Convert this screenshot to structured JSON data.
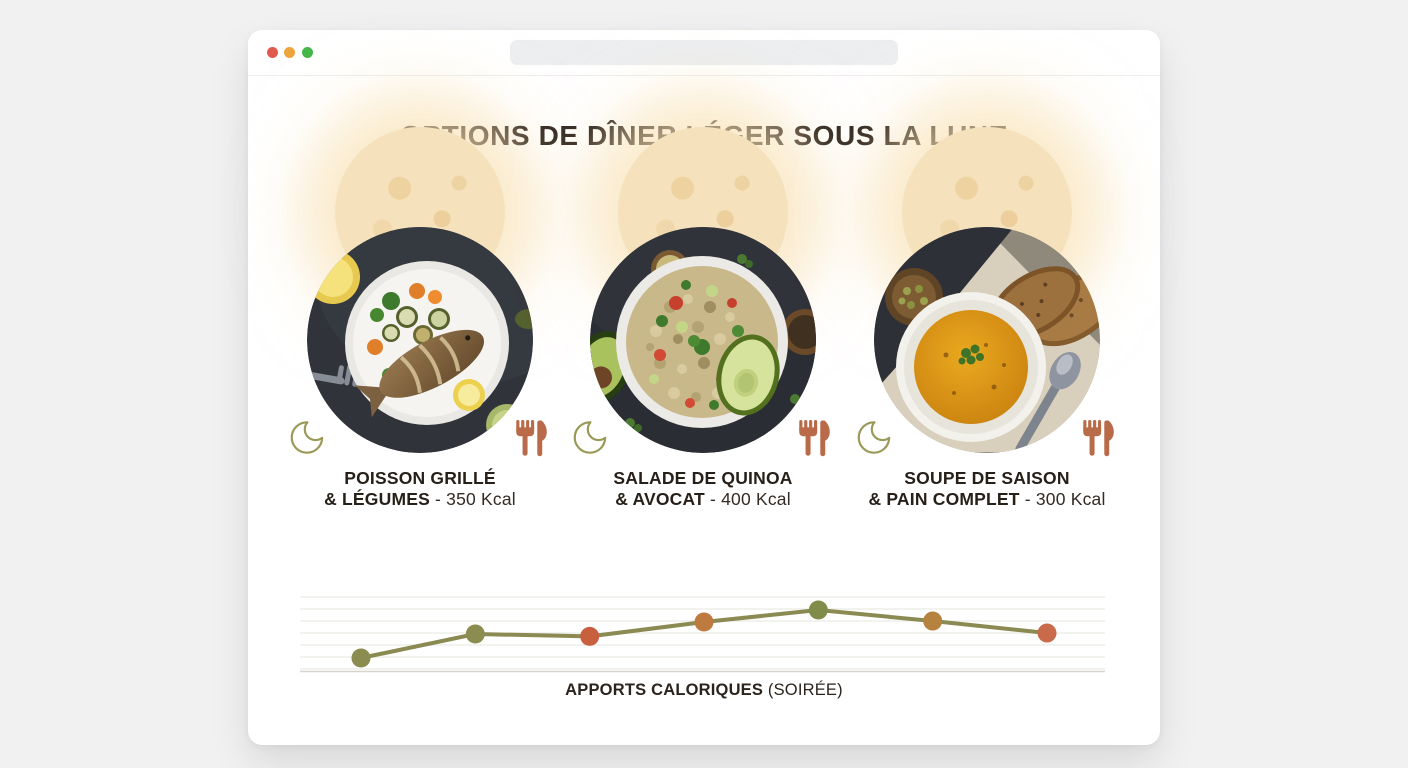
{
  "browser": {
    "traffic_lights": [
      "close",
      "minimize",
      "maximize"
    ],
    "traffic_light_colors": [
      "#e25a4e",
      "#eda63c",
      "#45b649"
    ],
    "address_bar_value": ""
  },
  "header": {
    "title": "OPTIONS DE DÎNER LÉGER SOUS LA LUNE"
  },
  "cards": [
    {
      "dish_line1": "POISSON GRILLÉ",
      "dish_line2": "& LÉGUMES",
      "kcal_suffix": " - 350 Kcal",
      "kcal": 350,
      "photo": "grilled-fish-and-vegetables-plate"
    },
    {
      "dish_line1": "SALADE DE QUINOA",
      "dish_line2": "& AVOCAT",
      "kcal_suffix": " - 400 Kcal",
      "kcal": 400,
      "photo": "quinoa-avocado-salad-bowl"
    },
    {
      "dish_line1": "SOUPE DE SAISON",
      "dish_line2": "& PAIN COMPLET",
      "kcal_suffix": " - 300 Kcal",
      "kcal": 300,
      "photo": "seasonal-soup-with-whole-grain-bread"
    }
  ],
  "icons": {
    "moon": "crescent-moon",
    "cutlery": "fork-and-knife"
  },
  "colors": {
    "moon_glow": "#f5e2bd",
    "olive_accent": "#8a8a52",
    "terracotta_accent": "#b96a48",
    "title_text": "#2a211b"
  },
  "chart_data": {
    "type": "line",
    "title": "APPORTS CALORIQUES (SOIRÉE)",
    "caption": {
      "bold": "APPORTS CALORIQUES",
      "regular": "(SOIRÉE)"
    },
    "x": [
      1,
      2,
      3,
      4,
      5,
      6,
      7
    ],
    "values": [
      300,
      350,
      345,
      375,
      400,
      377,
      352
    ],
    "ylim": [
      270,
      430
    ],
    "grid": true,
    "gridline_count": 7,
    "legend": "none",
    "xlabel": "",
    "ylabel": "",
    "line_color": "#8a8a52",
    "point_colors": [
      "#8b8c4f",
      "#8b8c4f",
      "#c8603f",
      "#bf7a40",
      "#7f8c4a",
      "#b5823f",
      "#c96b4a"
    ],
    "grid_color": "#ebe9e5",
    "axis_color": "#d7d4ce"
  }
}
